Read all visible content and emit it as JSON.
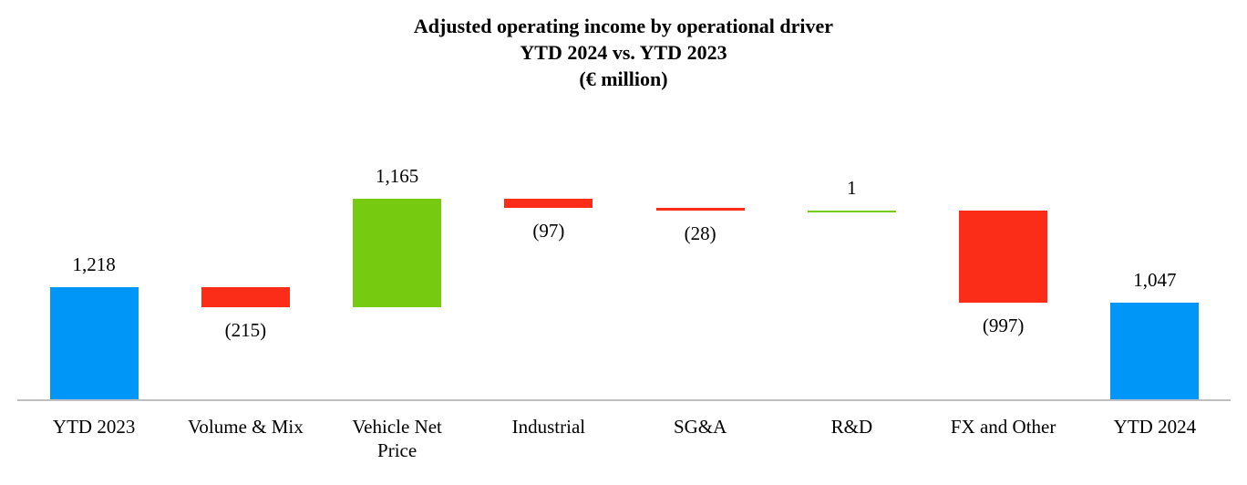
{
  "chart_data": {
    "type": "waterfall",
    "title": "Adjusted operating income by operational driver",
    "title_lines": [
      "Adjusted operating income by operational driver",
      "YTD 2024 vs. YTD 2023",
      "(€ million)"
    ],
    "unit": "€ million",
    "categories": [
      "YTD 2023",
      "Volume & Mix",
      "Vehicle Net Price",
      "Industrial",
      "SG&A",
      "R&D",
      "FX and Other",
      "YTD 2024"
    ],
    "bars": [
      {
        "label": "YTD 2023",
        "value": 1218,
        "display": "1,218",
        "kind": "total",
        "label_position": "above"
      },
      {
        "label": "Volume & Mix",
        "value": -215,
        "display": "(215)",
        "kind": "delta",
        "label_position": "below"
      },
      {
        "label": "Vehicle Net Price",
        "value": 1165,
        "display": "1,165",
        "kind": "delta",
        "label_position": "above"
      },
      {
        "label": "Industrial",
        "value": -97,
        "display": "(97)",
        "kind": "delta",
        "label_position": "below"
      },
      {
        "label": "SG&A",
        "value": -28,
        "display": "(28)",
        "kind": "delta",
        "label_position": "below"
      },
      {
        "label": "R&D",
        "value": 1,
        "display": "1",
        "kind": "delta",
        "label_position": "above"
      },
      {
        "label": "FX and Other",
        "value": -997,
        "display": "(997)",
        "kind": "delta",
        "label_position": "below"
      },
      {
        "label": "YTD 2024",
        "value": 1047,
        "display": "1,047",
        "kind": "total",
        "label_position": "above"
      }
    ],
    "colors": {
      "total": "#0096F8",
      "increase": "#76CB11",
      "decrease": "#FB2D19",
      "axis_line": "#BFBFBF",
      "text": "#000000",
      "background": "#FFFFFF"
    },
    "layout_hints": {
      "legend": "none",
      "grid": "off",
      "value_axis_visible": false,
      "baseline_value": 0
    }
  }
}
